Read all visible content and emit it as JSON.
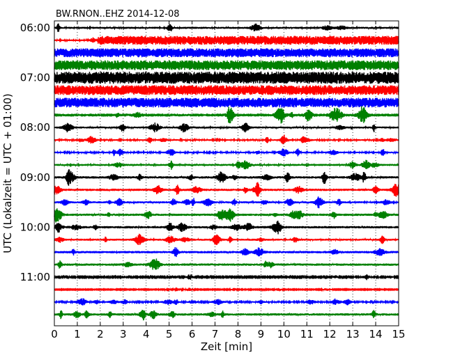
{
  "chart_data": {
    "type": "line",
    "title": "BW.RNON..EHZ 2014-12-08",
    "xlabel": "Zeit  [min]",
    "ylabel": "UTC (Lokalzeit = UTC + 01:00)",
    "xlim": [
      0,
      15
    ],
    "x_ticks": [
      "0",
      "1",
      "2",
      "3",
      "4",
      "5",
      "6",
      "7",
      "8",
      "9",
      "10",
      "11",
      "12",
      "13",
      "14",
      "15"
    ],
    "y_ticks": [
      {
        "label": "06:00",
        "trace": 0
      },
      {
        "label": "07:00",
        "trace": 4
      },
      {
        "label": "08:00",
        "trace": 8
      },
      {
        "label": "09:00",
        "trace": 12
      },
      {
        "label": "10:00",
        "trace": 16
      },
      {
        "label": "11:00",
        "trace": 20
      }
    ],
    "grid": "vertical-dotted",
    "trace_interval_min": 15,
    "colors": [
      "#000000",
      "#ff0000",
      "#0000ff",
      "#008000"
    ],
    "traces": [
      {
        "start": "06:00",
        "color": "#000000",
        "amplitude": 0.12
      },
      {
        "start": "06:15",
        "color": "#ff0000",
        "amplitude": 0.55,
        "onset_min": 1.9,
        "pre_amplitude": 0.1
      },
      {
        "start": "06:30",
        "color": "#0000ff",
        "amplitude": 0.55
      },
      {
        "start": "06:45",
        "color": "#008000",
        "amplitude": 0.6
      },
      {
        "start": "07:00",
        "color": "#000000",
        "amplitude": 0.75
      },
      {
        "start": "07:15",
        "color": "#ff0000",
        "amplitude": 0.6
      },
      {
        "start": "07:30",
        "color": "#0000ff",
        "amplitude": 0.6
      },
      {
        "start": "07:45",
        "color": "#008000",
        "amplitude": 0.18
      },
      {
        "start": "08:00",
        "color": "#000000",
        "amplitude": 0.12
      },
      {
        "start": "08:15",
        "color": "#ff0000",
        "amplitude": 0.1
      },
      {
        "start": "08:30",
        "color": "#0000ff",
        "amplitude": 0.1
      },
      {
        "start": "08:45",
        "color": "#008000",
        "amplitude": 0.12
      },
      {
        "start": "09:00",
        "color": "#000000",
        "amplitude": 0.14
      },
      {
        "start": "09:15",
        "color": "#ff0000",
        "amplitude": 0.14
      },
      {
        "start": "09:30",
        "color": "#0000ff",
        "amplitude": 0.12
      },
      {
        "start": "09:45",
        "color": "#008000",
        "amplitude": 0.14
      },
      {
        "start": "10:00",
        "color": "#000000",
        "amplitude": 0.14
      },
      {
        "start": "10:15",
        "color": "#ff0000",
        "amplitude": 0.12
      },
      {
        "start": "10:30",
        "color": "#0000ff",
        "amplitude": 0.14
      },
      {
        "start": "10:45",
        "color": "#008000",
        "amplitude": 0.14
      },
      {
        "start": "11:00",
        "color": "#000000",
        "amplitude": 0.07
      },
      {
        "start": "11:15",
        "color": "#ff0000",
        "amplitude": 0.05
      },
      {
        "start": "11:30",
        "color": "#0000ff",
        "amplitude": 0.09
      },
      {
        "start": "11:45",
        "color": "#008000",
        "amplitude": 0.14
      }
    ]
  }
}
